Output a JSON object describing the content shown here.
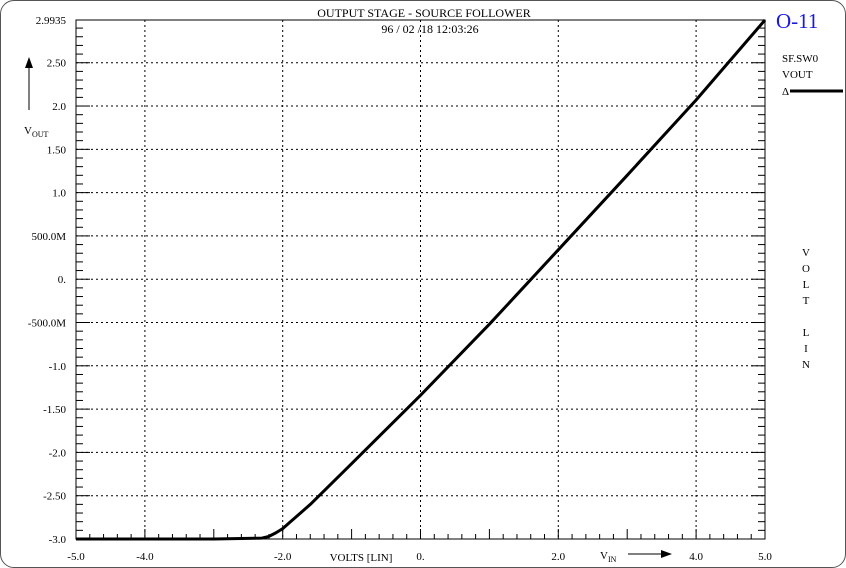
{
  "chart_data": {
    "type": "line",
    "title": "OUTPUT STAGE - SOURCE FOLLOWER",
    "subtitle": "96 / 02 /18   12:03:26",
    "page_id": "O-11",
    "xlabel": "VOLTS [LIN]",
    "x_variable": "V",
    "x_variable_sub": "IN",
    "ylabel": "V",
    "ylabel_sub": "OUT",
    "right_axis_label": [
      "V",
      "O",
      "L",
      "T",
      "",
      "L",
      "I",
      "N"
    ],
    "xlim": [
      -5.0,
      5.0
    ],
    "ylim": [
      -3.0,
      2.9935
    ],
    "x_ticks": [
      {
        "value": -5.0,
        "label": "-5.0"
      },
      {
        "value": -4.0,
        "label": "-4.0"
      },
      {
        "value": -2.0,
        "label": "-2.0"
      },
      {
        "value": 0.0,
        "label": "0."
      },
      {
        "value": 2.0,
        "label": "2.0"
      },
      {
        "value": 4.0,
        "label": "4.0"
      },
      {
        "value": 5.0,
        "label": "5.0"
      }
    ],
    "x_grid": [
      -4.0,
      -2.0,
      0.0,
      2.0,
      4.0
    ],
    "y_ticks": [
      {
        "value": 2.9935,
        "label": "2.9935"
      },
      {
        "value": 2.5,
        "label": "2.50"
      },
      {
        "value": 2.0,
        "label": "2.0"
      },
      {
        "value": 1.5,
        "label": "1.50"
      },
      {
        "value": 1.0,
        "label": "1.0"
      },
      {
        "value": 0.5,
        "label": "500.0M"
      },
      {
        "value": 0.0,
        "label": "0."
      },
      {
        "value": -0.5,
        "label": "-500.0M"
      },
      {
        "value": -1.0,
        "label": "-1.0"
      },
      {
        "value": -1.5,
        "label": "-1.50"
      },
      {
        "value": -2.0,
        "label": "-2.0"
      },
      {
        "value": -2.5,
        "label": "-2.50"
      },
      {
        "value": -3.0,
        "label": "-3.0"
      }
    ],
    "grid": true,
    "legend_position": "top-right",
    "series": [
      {
        "name": "SF.SW0 VOUT",
        "legend_lines": [
          "SF.SW0",
          "VOUT"
        ],
        "marker": "Δ",
        "color": "#000000",
        "x": [
          -5.0,
          -4.0,
          -3.0,
          -2.3,
          -2.2,
          -2.1,
          -2.0,
          -1.9,
          -1.8,
          -1.6,
          -1.0,
          0.0,
          1.0,
          2.0,
          3.0,
          4.0,
          5.0
        ],
        "y": [
          -3.0,
          -3.0,
          -3.0,
          -2.99,
          -2.97,
          -2.93,
          -2.88,
          -2.81,
          -2.74,
          -2.6,
          -2.13,
          -1.34,
          -0.52,
          0.34,
          1.2,
          2.07,
          2.9935
        ]
      }
    ]
  }
}
